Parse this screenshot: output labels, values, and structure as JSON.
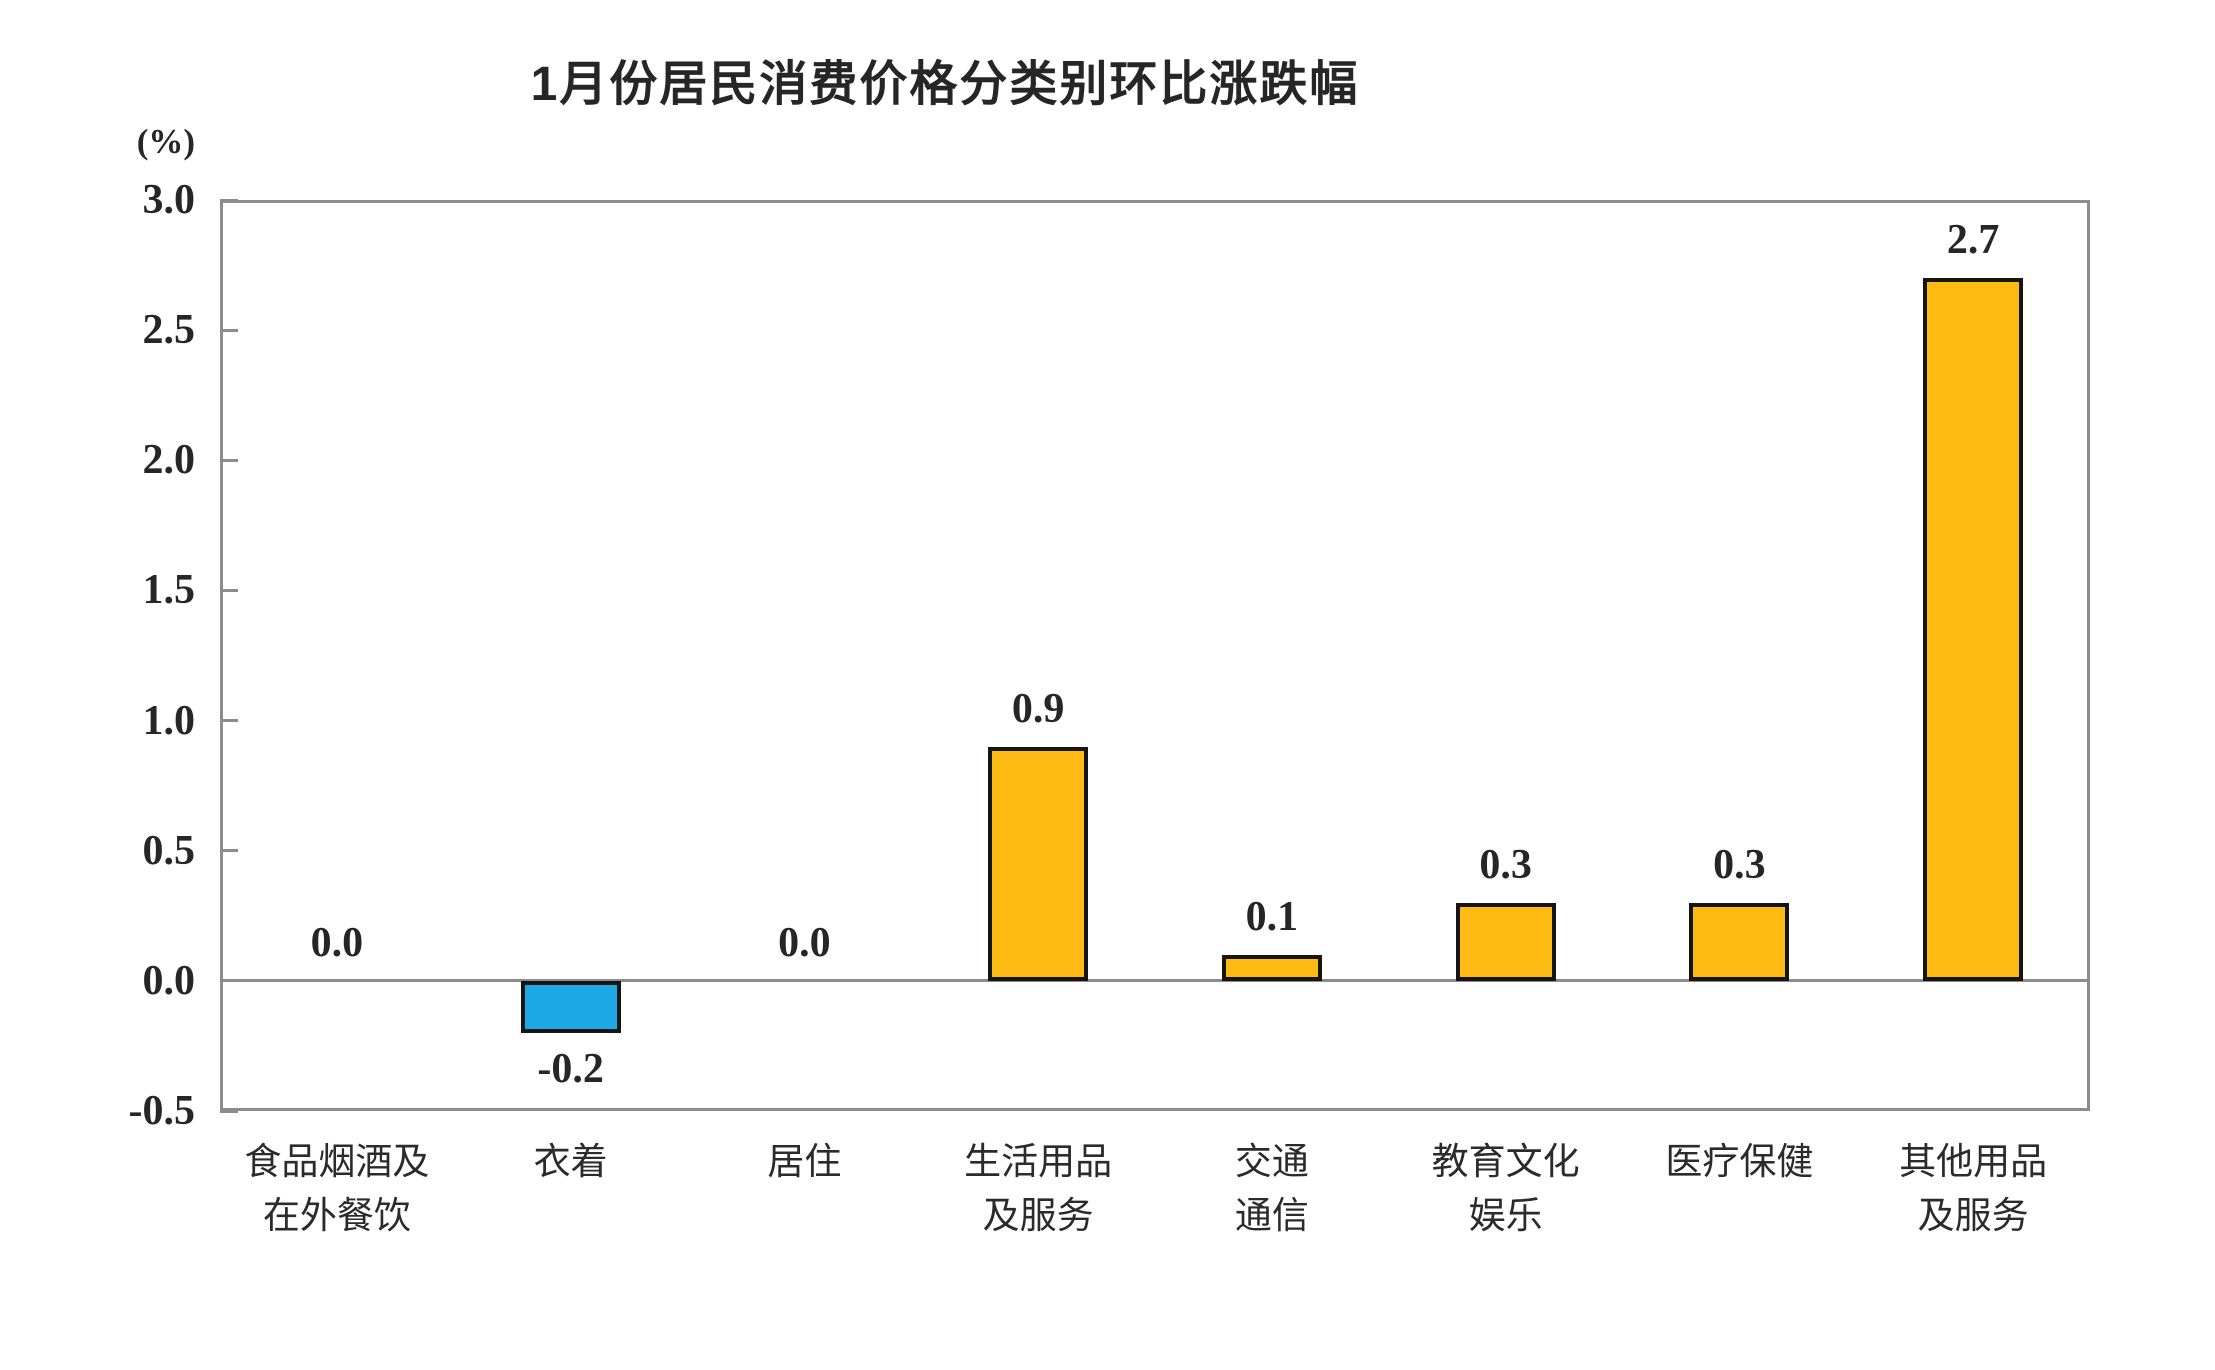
{
  "chart_data": {
    "type": "bar",
    "title": "1月份居民消费价格分类别环比涨跌幅",
    "unit_label": "(%)",
    "categories": [
      [
        "食品烟酒及",
        "在外餐饮"
      ],
      [
        "衣着"
      ],
      [
        "居住"
      ],
      [
        "生活用品",
        "及服务"
      ],
      [
        "交通",
        "通信"
      ],
      [
        "教育文化",
        "娱乐"
      ],
      [
        "医疗保健"
      ],
      [
        "其他用品",
        "及服务"
      ]
    ],
    "values": [
      0.0,
      -0.2,
      0.0,
      0.9,
      0.1,
      0.3,
      0.3,
      2.7
    ],
    "value_labels": [
      "0.0",
      "-0.2",
      "0.0",
      "0.9",
      "0.1",
      "0.3",
      "0.3",
      "2.7"
    ],
    "ylim": [
      -0.5,
      3.0
    ],
    "ytick_labels": [
      "3.0",
      "2.5",
      "2.0",
      "1.5",
      "1.0",
      "0.5",
      "0.0",
      "-0.5"
    ],
    "grid": false,
    "legend": "none",
    "colors": {
      "positive_bar": "#FDBA12",
      "negative_bar": "#1CA9E5",
      "bar_border": "#151515",
      "axis_frame": "#8C8C8C",
      "zero_line": "#8C8C8C",
      "text": "#262626"
    }
  }
}
